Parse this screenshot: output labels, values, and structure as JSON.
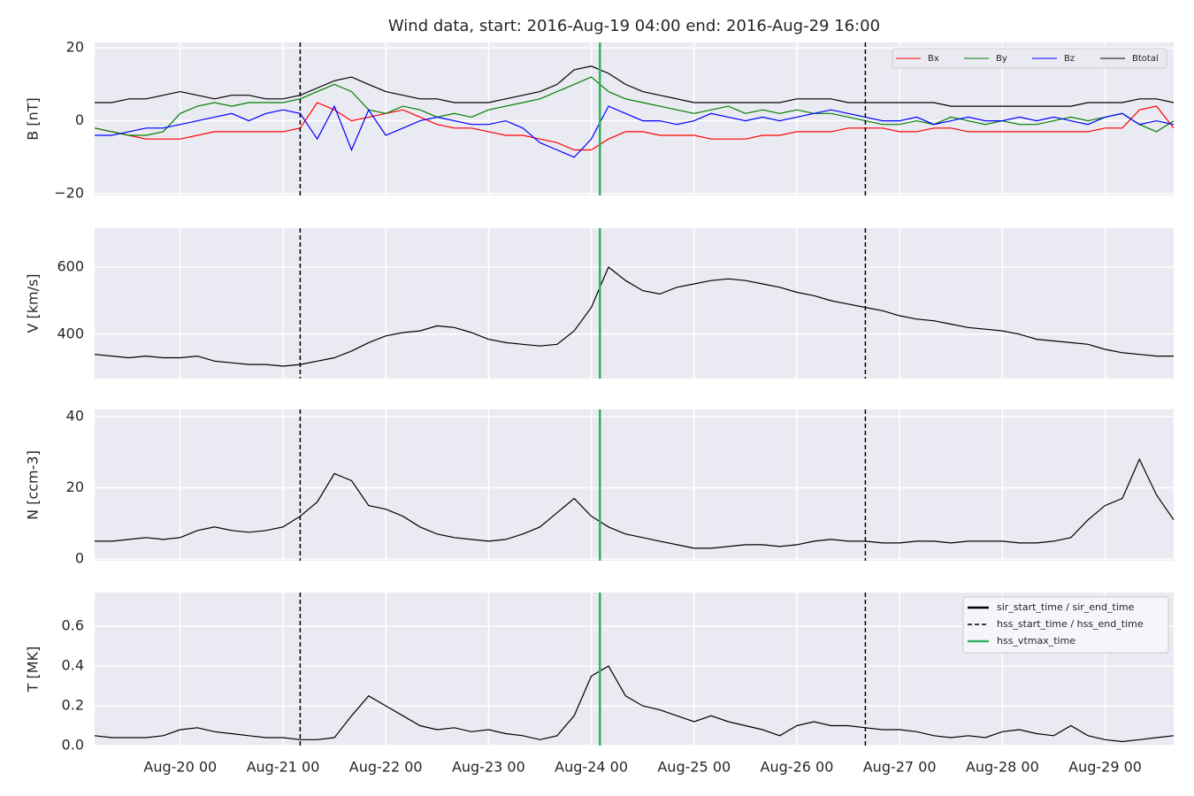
{
  "chart_data": [
    {
      "type": "line",
      "title": "Wind data, start: 2016-Aug-19 04:00  end: 2016-Aug-29 16:00",
      "ylabel": "B [nT]",
      "x": [
        "Aug-19 04",
        "Aug-19 08",
        "Aug-19 12",
        "Aug-19 16",
        "Aug-19 20",
        "Aug-20 00",
        "Aug-20 04",
        "Aug-20 08",
        "Aug-20 12",
        "Aug-20 16",
        "Aug-20 20",
        "Aug-21 00",
        "Aug-21 04",
        "Aug-21 08",
        "Aug-21 12",
        "Aug-21 16",
        "Aug-21 20",
        "Aug-22 00",
        "Aug-22 04",
        "Aug-22 08",
        "Aug-22 12",
        "Aug-22 16",
        "Aug-22 20",
        "Aug-23 00",
        "Aug-23 04",
        "Aug-23 08",
        "Aug-23 12",
        "Aug-23 16",
        "Aug-23 20",
        "Aug-24 00",
        "Aug-24 04",
        "Aug-24 08",
        "Aug-24 12",
        "Aug-24 16",
        "Aug-24 20",
        "Aug-25 00",
        "Aug-25 04",
        "Aug-25 08",
        "Aug-25 12",
        "Aug-25 16",
        "Aug-25 20",
        "Aug-26 00",
        "Aug-26 04",
        "Aug-26 08",
        "Aug-26 12",
        "Aug-26 16",
        "Aug-26 20",
        "Aug-27 00",
        "Aug-27 04",
        "Aug-27 08",
        "Aug-27 12",
        "Aug-27 16",
        "Aug-27 20",
        "Aug-28 00",
        "Aug-28 04",
        "Aug-28 08",
        "Aug-28 12",
        "Aug-28 16",
        "Aug-28 20",
        "Aug-29 00",
        "Aug-29 04",
        "Aug-29 08",
        "Aug-29 12",
        "Aug-29 16"
      ],
      "series": [
        {
          "name": "Bx",
          "color": "#ff0000",
          "values": [
            -2,
            -3,
            -4,
            -5,
            -5,
            -5,
            -4,
            -3,
            -3,
            -3,
            -3,
            -3,
            -2,
            5,
            3,
            0,
            1,
            2,
            3,
            1,
            -1,
            -2,
            -2,
            -3,
            -4,
            -4,
            -5,
            -6,
            -8,
            -8,
            -5,
            -3,
            -3,
            -4,
            -4,
            -4,
            -5,
            -5,
            -5,
            -4,
            -4,
            -3,
            -3,
            -3,
            -2,
            -2,
            -2,
            -3,
            -3,
            -2,
            -2,
            -3,
            -3,
            -3,
            -3,
            -3,
            -3,
            -3,
            -3,
            -2,
            -2,
            3,
            4,
            -2
          ]
        },
        {
          "name": "By",
          "color": "#008000",
          "values": [
            -2,
            -3,
            -4,
            -4,
            -3,
            2,
            4,
            5,
            4,
            5,
            5,
            5,
            6,
            8,
            10,
            8,
            3,
            2,
            4,
            3,
            1,
            2,
            1,
            3,
            4,
            5,
            6,
            8,
            10,
            12,
            8,
            6,
            5,
            4,
            3,
            2,
            3,
            4,
            2,
            3,
            2,
            3,
            2,
            2,
            1,
            0,
            -1,
            -1,
            0,
            -1,
            1,
            0,
            -1,
            0,
            -1,
            -1,
            0,
            1,
            0,
            1,
            2,
            -1,
            -3,
            0
          ]
        },
        {
          "name": "Bz",
          "color": "#0000ff",
          "values": [
            -4,
            -4,
            -3,
            -2,
            -2,
            -1,
            0,
            1,
            2,
            0,
            2,
            3,
            2,
            -5,
            4,
            -8,
            3,
            -4,
            -2,
            0,
            1,
            0,
            -1,
            -1,
            0,
            -2,
            -6,
            -8,
            -10,
            -5,
            4,
            2,
            0,
            0,
            -1,
            0,
            2,
            1,
            0,
            1,
            0,
            1,
            2,
            3,
            2,
            1,
            0,
            0,
            1,
            -1,
            0,
            1,
            0,
            0,
            1,
            0,
            1,
            0,
            -1,
            1,
            2,
            -1,
            0,
            -1
          ]
        },
        {
          "name": "Btotal",
          "color": "#000000",
          "values": [
            5,
            5,
            6,
            6,
            7,
            8,
            7,
            6,
            7,
            7,
            6,
            6,
            7,
            9,
            11,
            12,
            10,
            8,
            7,
            6,
            6,
            5,
            5,
            5,
            6,
            7,
            8,
            10,
            14,
            15,
            13,
            10,
            8,
            7,
            6,
            5,
            5,
            5,
            5,
            5,
            5,
            6,
            6,
            6,
            5,
            5,
            5,
            5,
            5,
            5,
            4,
            4,
            4,
            4,
            4,
            4,
            4,
            4,
            5,
            5,
            5,
            6,
            6,
            5
          ]
        }
      ],
      "ylim": [
        -20.5,
        21.5
      ],
      "yticks": [
        {
          "value": -20,
          "label": "−20"
        },
        0,
        20
      ],
      "grid": true,
      "legend": "upper right"
    },
    {
      "type": "line",
      "ylabel": "V [km/s]",
      "series": [
        {
          "color": "#000000",
          "values": [
            340,
            335,
            330,
            335,
            330,
            330,
            335,
            320,
            315,
            310,
            310,
            305,
            310,
            320,
            330,
            350,
            375,
            395,
            405,
            410,
            425,
            420,
            405,
            385,
            375,
            370,
            365,
            370,
            410,
            480,
            600,
            560,
            530,
            520,
            540,
            550,
            560,
            565,
            560,
            550,
            540,
            525,
            515,
            500,
            490,
            480,
            470,
            455,
            445,
            440,
            430,
            420,
            415,
            410,
            400,
            385,
            380,
            375,
            370,
            355,
            345,
            340,
            335,
            335
          ]
        }
      ],
      "ylim": [
        268,
        716
      ],
      "yticks": [
        400,
        600
      ],
      "grid": true
    },
    {
      "type": "line",
      "ylabel": "N [ccm-3]",
      "series": [
        {
          "color": "#000000",
          "values": [
            5,
            5,
            5.5,
            6,
            5.5,
            6,
            8,
            9,
            8,
            7.5,
            8,
            9,
            12,
            16,
            24,
            22,
            15,
            14,
            12,
            9,
            7,
            6,
            5.5,
            5,
            5.5,
            7,
            9,
            13,
            17,
            12,
            9,
            7,
            6,
            5,
            4,
            3,
            3,
            3.5,
            4,
            4,
            3.5,
            4,
            5,
            5.5,
            5,
            5,
            4.5,
            4.5,
            5,
            5,
            4.5,
            5,
            5,
            5,
            4.5,
            4.5,
            5,
            6,
            11,
            15,
            17,
            28,
            18,
            11
          ]
        }
      ],
      "ylim": [
        -0.5,
        42
      ],
      "yticks": [
        0,
        20,
        40
      ],
      "grid": true
    },
    {
      "type": "line",
      "ylabel": "T [MK]",
      "series": [
        {
          "color": "#000000",
          "values": [
            0.05,
            0.04,
            0.04,
            0.04,
            0.05,
            0.08,
            0.09,
            0.07,
            0.06,
            0.05,
            0.04,
            0.04,
            0.03,
            0.03,
            0.04,
            0.15,
            0.25,
            0.2,
            0.15,
            0.1,
            0.08,
            0.09,
            0.07,
            0.08,
            0.06,
            0.05,
            0.03,
            0.05,
            0.15,
            0.35,
            0.4,
            0.25,
            0.2,
            0.18,
            0.15,
            0.12,
            0.15,
            0.12,
            0.1,
            0.08,
            0.05,
            0.1,
            0.12,
            0.1,
            0.1,
            0.09,
            0.08,
            0.08,
            0.07,
            0.05,
            0.04,
            0.05,
            0.04,
            0.07,
            0.08,
            0.06,
            0.05,
            0.1,
            0.05,
            0.03,
            0.02,
            0.03,
            0.04,
            0.05
          ]
        }
      ],
      "ylim": [
        0,
        0.77
      ],
      "yticks": [
        {
          "value": 0,
          "label": "0.0"
        },
        0.2,
        0.4,
        0.6
      ],
      "grid": true,
      "xlim": [
        "Aug-19 04",
        "Aug-29 16"
      ],
      "xticks": [
        "Aug-20 00",
        "Aug-21 00",
        "Aug-22 00",
        "Aug-23 00",
        "Aug-24 00",
        "Aug-25 00",
        "Aug-26 00",
        "Aug-27 00",
        "Aug-28 00",
        "Aug-29 00"
      ],
      "events": [
        {
          "name": "sir_start_time / sir_end_time",
          "color": "#000000",
          "style": "solid",
          "x": []
        },
        {
          "name": "hss_start_time / hss_end_time",
          "color": "#000000",
          "style": "dashed",
          "x": [
            "Aug-21 04",
            "Aug-26 16"
          ]
        },
        {
          "name": "hss_vtmax_time",
          "color": "#2db35d",
          "style": "solid",
          "x": [
            "Aug-24 02"
          ]
        }
      ],
      "legend": "upper right"
    }
  ]
}
